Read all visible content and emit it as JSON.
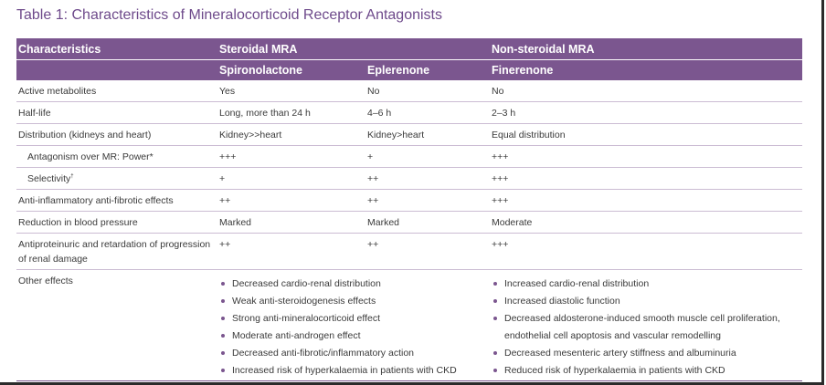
{
  "title": "Table 1: Characteristics of Mineralocorticoid Receptor Antagonists",
  "header": {
    "characteristics": "Characteristics",
    "steroidal": "Steroidal MRA",
    "non_steroidal": "Non-steroidal MRA",
    "spironolactone": "Spironolactone",
    "eplerenone": "Eplerenone",
    "finerenone": "Finerenone"
  },
  "rows": [
    {
      "label": "Active metabolites",
      "spiro": "Yes",
      "eple": "No",
      "fine": "No"
    },
    {
      "label": "Half-life",
      "spiro": "Long, more than 24 h",
      "eple": "4–6 h",
      "fine": "2–3 h"
    },
    {
      "label": "Distribution (kidneys and heart)",
      "spiro": "Kidney>>heart",
      "eple": "Kidney>heart",
      "fine": "Equal distribution"
    },
    {
      "label": "Antagonism over MR: Power*",
      "spiro": "+++",
      "eple": "+",
      "fine": "+++"
    },
    {
      "label": "Selectivity",
      "label_sup": "†",
      "spiro": "+",
      "eple": "++",
      "fine": "+++"
    },
    {
      "label": "Anti-inflammatory anti-fibrotic effects",
      "spiro": "++",
      "eple": "++",
      "fine": "+++"
    },
    {
      "label": "Reduction in blood pressure",
      "spiro": "Marked",
      "eple": "Marked",
      "fine": "Moderate"
    },
    {
      "label": "Antiproteinuric and retardation of progression of renal damage",
      "spiro": "++",
      "eple": "++",
      "fine": "+++"
    }
  ],
  "other_effects": {
    "label": "Other effects",
    "steroidal": [
      "Decreased cardio-renal distribution",
      "Weak anti-steroidogenesis effects",
      "Strong anti-mineralocorticoid effect",
      "Moderate anti-androgen effect",
      "Decreased anti-fibrotic/inflammatory action",
      "Increased risk of hyperkalaemia in patients with CKD"
    ],
    "non_steroidal": [
      "Increased cardio-renal distribution",
      "Increased diastolic function",
      "Decreased aldosterone-induced smooth muscle cell proliferation, endothelial cell apoptosis and vascular remodelling",
      "Decreased mesenteric artery stiffness and albuminuria",
      "Reduced risk of hyperkalaemia in patients with CKD"
    ]
  },
  "colors": {
    "header_bg": "#7b568f",
    "title": "#6e4a8b",
    "rule": "#cbbcd3"
  }
}
